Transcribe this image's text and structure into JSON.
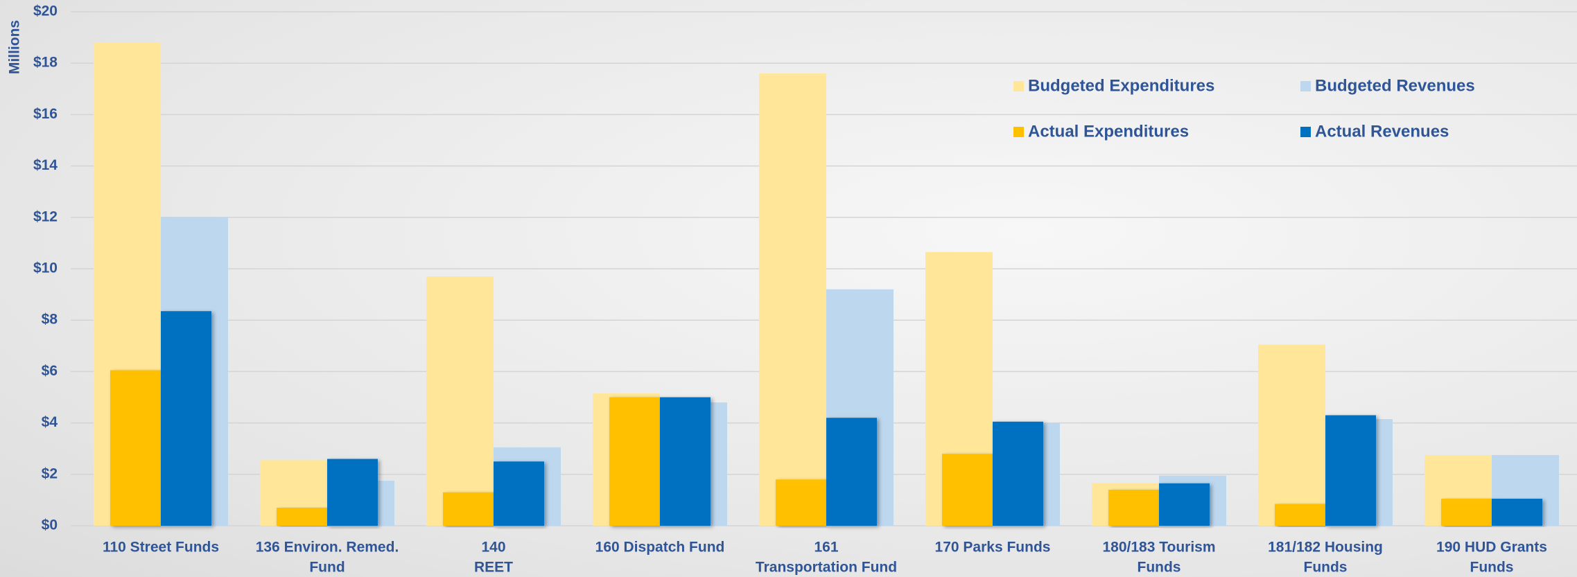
{
  "chart_data": {
    "type": "bar",
    "y_axis_label": "Millions",
    "categories": [
      [
        "110 Street Funds"
      ],
      [
        "136 Environ. Remed.",
        "Fund"
      ],
      [
        "140",
        "REET"
      ],
      [
        "160 Dispatch Fund"
      ],
      [
        "161",
        "Transportation Fund"
      ],
      [
        "170 Parks Funds"
      ],
      [
        "180/183 Tourism",
        "Funds"
      ],
      [
        "181/182 Housing",
        "Funds"
      ],
      [
        "190 HUD Grants",
        "Funds"
      ]
    ],
    "series": [
      {
        "name": "Budgeted Expenditures",
        "color": "#ffe699",
        "values": [
          18.8,
          2.55,
          9.7,
          5.15,
          17.6,
          10.65,
          1.65,
          7.05,
          2.75
        ]
      },
      {
        "name": "Budgeted Revenues",
        "color": "#bdd7ee",
        "values": [
          12.0,
          1.75,
          3.05,
          4.8,
          9.2,
          4.0,
          1.95,
          4.15,
          2.75
        ]
      },
      {
        "name": "Actual Expenditures",
        "color": "#ffc000",
        "values": [
          6.05,
          0.7,
          1.3,
          5.0,
          1.8,
          2.8,
          1.4,
          0.85,
          1.05
        ]
      },
      {
        "name": "Actual Revenues",
        "color": "#0070c0",
        "values": [
          8.35,
          2.6,
          2.5,
          5.0,
          4.2,
          4.05,
          1.65,
          4.3,
          1.05
        ]
      }
    ],
    "ylim": [
      0,
      20
    ],
    "yticks": [
      {
        "value": 0,
        "label": "$0"
      },
      {
        "value": 2,
        "label": "$2"
      },
      {
        "value": 4,
        "label": "$4"
      },
      {
        "value": 6,
        "label": "$6"
      },
      {
        "value": 8,
        "label": "$8"
      },
      {
        "value": 10,
        "label": "$10"
      },
      {
        "value": 12,
        "label": "$12"
      },
      {
        "value": 14,
        "label": "$14"
      },
      {
        "value": 16,
        "label": "$16"
      },
      {
        "value": 18,
        "label": "$18"
      },
      {
        "value": 20,
        "label": "$20"
      }
    ],
    "grid": true
  }
}
